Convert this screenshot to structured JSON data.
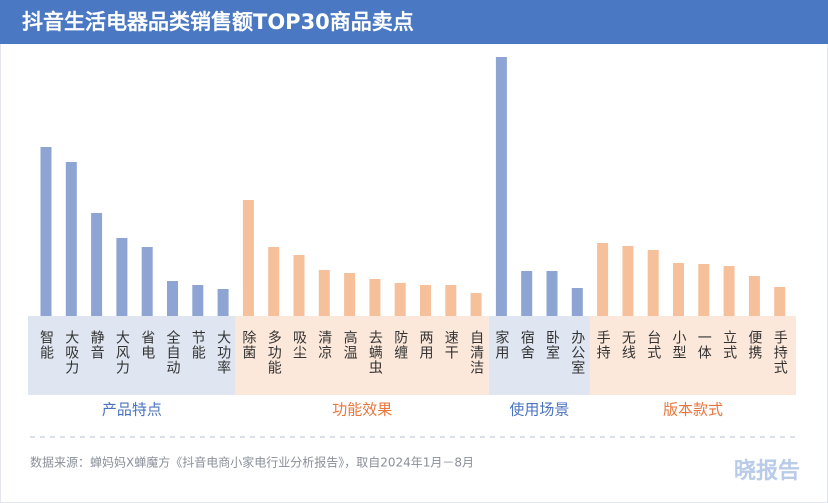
{
  "chart_data": {
    "type": "bar",
    "title": "抖音生活电器品类销售额TOP30商品卖点",
    "ylim": [
      0,
      270
    ],
    "series": [
      {
        "name": "产品特点",
        "color": "#8ea5d3",
        "band_color": "#dfe6f1",
        "label_color": "#4a73bf",
        "categories": [
          "智能",
          "大吸力",
          "静音",
          "大风力",
          "省电",
          "全自动",
          "节能",
          "大功率"
        ],
        "values": [
          169,
          154,
          103,
          78,
          69,
          35,
          31,
          27
        ]
      },
      {
        "name": "功能效果",
        "color": "#f6c09a",
        "band_color": "#fce8da",
        "label_color": "#e8763c",
        "categories": [
          "除菌",
          "多功能",
          "吸尘",
          "清凉",
          "高温",
          "去螨虫",
          "防缠",
          "两用",
          "速干",
          "自清洁"
        ],
        "values": [
          116,
          69,
          61,
          46,
          43,
          37,
          33,
          31,
          31,
          23
        ]
      },
      {
        "name": "使用场景",
        "color": "#8ea5d3",
        "band_color": "#dfe6f1",
        "label_color": "#4a73bf",
        "categories": [
          "家用",
          "宿舍",
          "卧室",
          "办公室"
        ],
        "values": [
          259,
          45,
          45,
          28
        ]
      },
      {
        "name": "版本款式",
        "color": "#f6c09a",
        "band_color": "#fce8da",
        "label_color": "#e8763c",
        "categories": [
          "手持",
          "无线",
          "台式",
          "小型",
          "一体",
          "立式",
          "便携",
          "手持式"
        ],
        "values": [
          73,
          70,
          66,
          53,
          52,
          50,
          40,
          29
        ]
      }
    ],
    "source": "数据来源：蝉妈妈X蝉魔方《抖音电商小家电行业分析报告》，取自2024年1月－8月",
    "brand": "晓报告"
  }
}
